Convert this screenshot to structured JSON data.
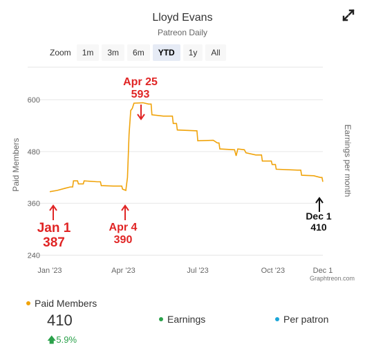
{
  "header": {
    "title": "Lloyd Evans",
    "subtitle": "Patreon Daily"
  },
  "zoom": {
    "label": "Zoom",
    "buttons": [
      "1m",
      "3m",
      "6m",
      "YTD",
      "1y",
      "All"
    ],
    "active": "YTD"
  },
  "credit": "Graphtreon.com",
  "annotations": [
    {
      "name": "annotation-jan1",
      "date_label": "Jan 1",
      "value_label": "387",
      "color": "#e02424"
    },
    {
      "name": "annotation-apr4",
      "date_label": "Apr 4",
      "value_label": "390",
      "color": "#e02424"
    },
    {
      "name": "annotation-apr25",
      "date_label": "Apr 25",
      "value_label": "593",
      "color": "#e02424"
    },
    {
      "name": "annotation-dec1",
      "date_label": "Dec 1",
      "value_label": "410",
      "color": "#111111"
    }
  ],
  "legend": {
    "items": [
      {
        "label": "Paid Members",
        "color": "#f0a30a"
      },
      {
        "label": "Earnings",
        "color": "#2aa14a"
      },
      {
        "label": "Per patron",
        "color": "#1ba6d8"
      }
    ],
    "paid_value": "410",
    "change": "5.9%"
  },
  "chart_data": {
    "type": "line",
    "title": "Lloyd Evans",
    "subtitle": "Patreon Daily",
    "ylabel": "Paid Members",
    "ylabel_right": "Earnings per month",
    "ylim": [
      240,
      660
    ],
    "yticks": [
      240,
      360,
      480,
      600
    ],
    "xlim": [
      "2023-01-01",
      "2023-12-01"
    ],
    "xticks": [
      {
        "date": "2023-01-01",
        "label": "Jan '23"
      },
      {
        "date": "2023-04-01",
        "label": "Apr '23"
      },
      {
        "date": "2023-07-01",
        "label": "Jul '23"
      },
      {
        "date": "2023-10-01",
        "label": "Oct '23"
      },
      {
        "date": "2023-12-01",
        "label": "Dec 1"
      }
    ],
    "series": [
      {
        "name": "Paid Members",
        "color": "#f0a30a",
        "points": [
          [
            "2023-01-01",
            387
          ],
          [
            "2023-01-10",
            390
          ],
          [
            "2023-01-20",
            395
          ],
          [
            "2023-01-26",
            398
          ],
          [
            "2023-01-30",
            412
          ],
          [
            "2023-02-05",
            405
          ],
          [
            "2023-02-12",
            412
          ],
          [
            "2023-02-28",
            410
          ],
          [
            "2023-03-05",
            401
          ],
          [
            "2023-03-20",
            400
          ],
          [
            "2023-03-31",
            393
          ],
          [
            "2023-04-04",
            390
          ],
          [
            "2023-04-06",
            420
          ],
          [
            "2023-04-08",
            520
          ],
          [
            "2023-04-10",
            575
          ],
          [
            "2023-04-12",
            580
          ],
          [
            "2023-04-14",
            592
          ],
          [
            "2023-04-25",
            593
          ],
          [
            "2023-05-02",
            590
          ],
          [
            "2023-05-06",
            565
          ],
          [
            "2023-05-20",
            562
          ],
          [
            "2023-06-01",
            545
          ],
          [
            "2023-06-06",
            530
          ],
          [
            "2023-06-30",
            528
          ],
          [
            "2023-07-01",
            505
          ],
          [
            "2023-07-20",
            506
          ],
          [
            "2023-07-25",
            500
          ],
          [
            "2023-07-28",
            486
          ],
          [
            "2023-08-15",
            484
          ],
          [
            "2023-08-17",
            470
          ],
          [
            "2023-08-19",
            486
          ],
          [
            "2023-08-27",
            484
          ],
          [
            "2023-08-29",
            477
          ],
          [
            "2023-09-10",
            472
          ],
          [
            "2023-09-18",
            458
          ],
          [
            "2023-09-30",
            450
          ],
          [
            "2023-10-05",
            439
          ],
          [
            "2023-10-31",
            437
          ],
          [
            "2023-11-05",
            425
          ],
          [
            "2023-11-20",
            424
          ],
          [
            "2023-11-28",
            420
          ],
          [
            "2023-12-01",
            410
          ]
        ]
      }
    ]
  }
}
